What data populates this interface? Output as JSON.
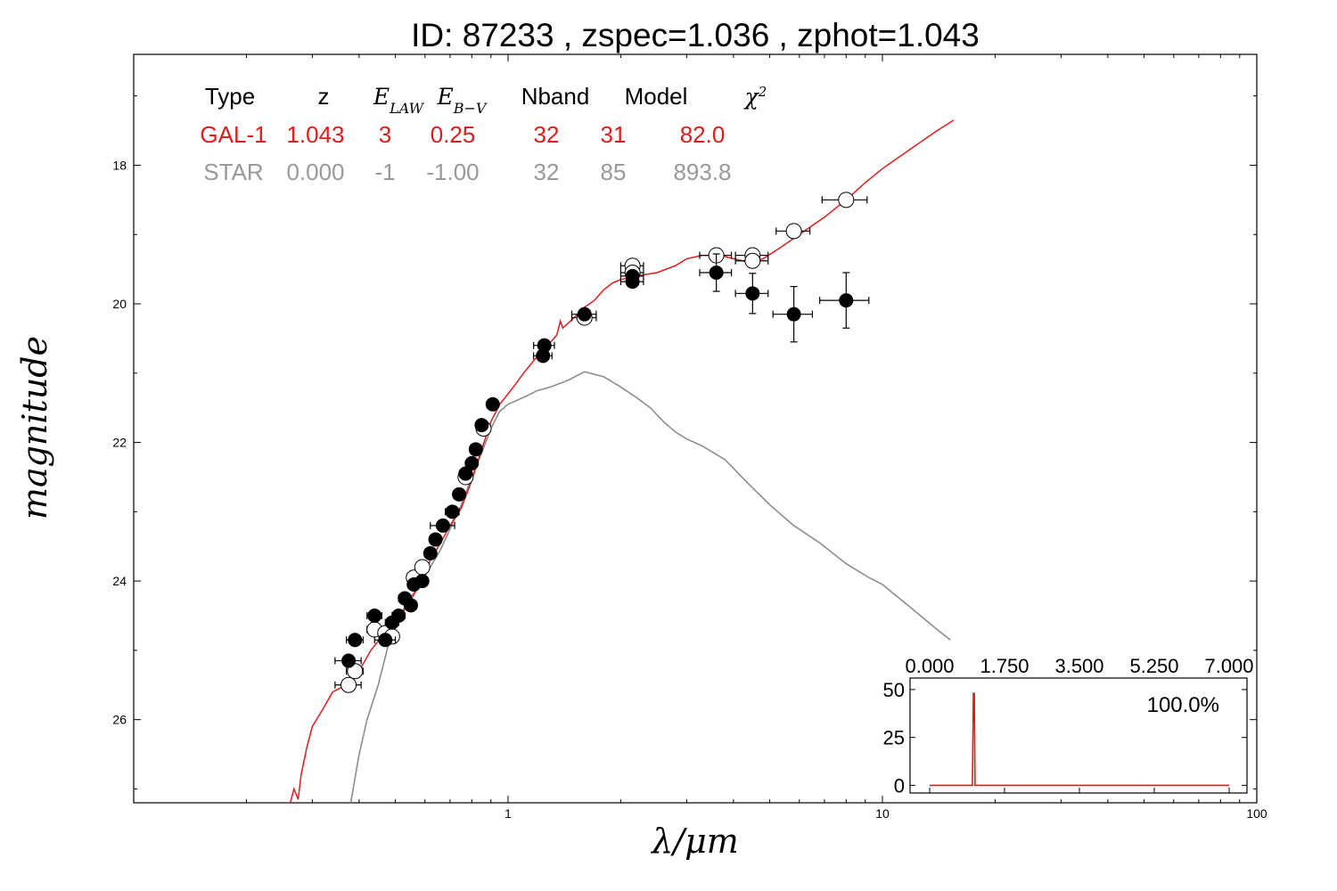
{
  "chart_data": {
    "type": "scatter",
    "title": "ID:  87233 , zspec=1.036 , zphot=1.043",
    "xlabel": "λ/μm",
    "ylabel": "magnitude",
    "x_scale": "log",
    "xlim": [
      0.1,
      100
    ],
    "ylim": [
      27.2,
      16.4
    ],
    "y_inverted": true,
    "x_tick_labels": [
      "1",
      "10",
      "100"
    ],
    "y_tick_labels": [
      "18",
      "20",
      "22",
      "24",
      "26"
    ],
    "fit_table": {
      "headers": [
        "Type",
        "z",
        "E_LAW",
        "E_B−V",
        "Nband",
        "Model",
        "χ²"
      ],
      "rows": [
        {
          "cells": [
            "GAL-1",
            "1.043",
            "3",
            "0.25",
            "32",
            "31",
            "82.0"
          ],
          "color": "#e31a1c"
        },
        {
          "cells": [
            "STAR",
            "0.000",
            "-1",
            "-1.00",
            "32",
            "85",
            "893.8"
          ],
          "color": "#999999"
        }
      ]
    },
    "series": [
      {
        "name": "GAL-1",
        "kind": "line",
        "color": "#e31a1c",
        "points": [
          [
            0.262,
            27.2
          ],
          [
            0.268,
            27.0
          ],
          [
            0.275,
            27.15
          ],
          [
            0.28,
            26.8
          ],
          [
            0.29,
            26.4
          ],
          [
            0.3,
            26.1
          ],
          [
            0.32,
            25.85
          ],
          [
            0.34,
            25.6
          ],
          [
            0.37,
            25.5
          ],
          [
            0.4,
            25.3
          ],
          [
            0.43,
            25.0
          ],
          [
            0.46,
            24.8
          ],
          [
            0.5,
            24.6
          ],
          [
            0.54,
            24.35
          ],
          [
            0.58,
            24.05
          ],
          [
            0.62,
            23.7
          ],
          [
            0.66,
            23.45
          ],
          [
            0.7,
            23.2
          ],
          [
            0.75,
            22.95
          ],
          [
            0.8,
            22.55
          ],
          [
            0.85,
            22.1
          ],
          [
            0.9,
            21.7
          ],
          [
            0.95,
            21.45
          ],
          [
            1.0,
            21.3
          ],
          [
            1.05,
            21.15
          ],
          [
            1.1,
            21.0
          ],
          [
            1.2,
            20.75
          ],
          [
            1.3,
            20.55
          ],
          [
            1.35,
            20.45
          ],
          [
            1.38,
            20.25
          ],
          [
            1.4,
            20.35
          ],
          [
            1.5,
            20.2
          ],
          [
            1.6,
            20.05
          ],
          [
            1.7,
            19.95
          ],
          [
            1.8,
            19.8
          ],
          [
            1.9,
            19.7
          ],
          [
            2.0,
            19.65
          ],
          [
            2.2,
            19.6
          ],
          [
            2.5,
            19.55
          ],
          [
            2.8,
            19.45
          ],
          [
            3.0,
            19.35
          ],
          [
            3.3,
            19.3
          ],
          [
            3.7,
            19.3
          ],
          [
            4.0,
            19.35
          ],
          [
            4.4,
            19.4
          ],
          [
            4.8,
            19.35
          ],
          [
            5.3,
            19.2
          ],
          [
            6.0,
            19.0
          ],
          [
            7.0,
            18.75
          ],
          [
            8.0,
            18.5
          ],
          [
            9.0,
            18.25
          ],
          [
            10.0,
            18.05
          ],
          [
            12.0,
            17.75
          ],
          [
            14.0,
            17.5
          ],
          [
            15.5,
            17.35
          ]
        ]
      },
      {
        "name": "STAR",
        "kind": "line",
        "color": "#8c8c8c",
        "points": [
          [
            0.38,
            27.2
          ],
          [
            0.4,
            26.5
          ],
          [
            0.42,
            26.0
          ],
          [
            0.45,
            25.5
          ],
          [
            0.48,
            24.9
          ],
          [
            0.5,
            24.6
          ],
          [
            0.54,
            24.3
          ],
          [
            0.58,
            24.05
          ],
          [
            0.62,
            23.8
          ],
          [
            0.66,
            23.55
          ],
          [
            0.7,
            23.25
          ],
          [
            0.75,
            22.9
          ],
          [
            0.8,
            22.5
          ],
          [
            0.85,
            22.15
          ],
          [
            0.9,
            21.8
          ],
          [
            0.95,
            21.55
          ],
          [
            1.0,
            21.45
          ],
          [
            1.1,
            21.35
          ],
          [
            1.2,
            21.25
          ],
          [
            1.3,
            21.2
          ],
          [
            1.45,
            21.1
          ],
          [
            1.6,
            20.98
          ],
          [
            1.8,
            21.05
          ],
          [
            2.0,
            21.2
          ],
          [
            2.2,
            21.35
          ],
          [
            2.4,
            21.5
          ],
          [
            2.6,
            21.7
          ],
          [
            2.8,
            21.85
          ],
          [
            3.0,
            21.95
          ],
          [
            3.3,
            22.05
          ],
          [
            3.8,
            22.25
          ],
          [
            4.3,
            22.55
          ],
          [
            5.0,
            22.9
          ],
          [
            5.8,
            23.2
          ],
          [
            6.8,
            23.45
          ],
          [
            8.0,
            23.75
          ],
          [
            9.2,
            23.95
          ],
          [
            10.0,
            24.05
          ],
          [
            12.0,
            24.4
          ],
          [
            14.0,
            24.7
          ],
          [
            15.2,
            24.85
          ]
        ]
      }
    ],
    "photometry": {
      "observed": [
        {
          "x": 0.375,
          "y": 25.15,
          "xerr": 0.03,
          "yerr": 0.06
        },
        {
          "x": 0.39,
          "y": 24.85,
          "xerr": 0.02,
          "yerr": 0.06
        },
        {
          "x": 0.44,
          "y": 24.5,
          "xerr": 0.02,
          "yerr": 0.06
        },
        {
          "x": 0.47,
          "y": 24.85,
          "xerr": 0.03,
          "yerr": 0.06
        },
        {
          "x": 0.49,
          "y": 24.6,
          "xerr": 0.02,
          "yerr": 0.06
        },
        {
          "x": 0.51,
          "y": 24.5,
          "xerr": 0.02,
          "yerr": 0.06
        },
        {
          "x": 0.53,
          "y": 24.25,
          "xerr": 0.02,
          "yerr": 0.05
        },
        {
          "x": 0.55,
          "y": 24.35,
          "xerr": 0.02,
          "yerr": 0.05
        },
        {
          "x": 0.56,
          "y": 24.05,
          "xerr": 0.02,
          "yerr": 0.05
        },
        {
          "x": 0.59,
          "y": 24.0,
          "xerr": 0.02,
          "yerr": 0.05
        },
        {
          "x": 0.62,
          "y": 23.6,
          "xerr": 0.02,
          "yerr": 0.05
        },
        {
          "x": 0.64,
          "y": 23.4,
          "xerr": 0.02,
          "yerr": 0.05
        },
        {
          "x": 0.67,
          "y": 23.2,
          "xerr": 0.05,
          "yerr": 0.04
        },
        {
          "x": 0.71,
          "y": 23.0,
          "xerr": 0.03,
          "yerr": 0.04
        },
        {
          "x": 0.74,
          "y": 22.75,
          "xerr": 0.02,
          "yerr": 0.04
        },
        {
          "x": 0.77,
          "y": 22.45,
          "xerr": 0.02,
          "yerr": 0.04
        },
        {
          "x": 0.8,
          "y": 22.3,
          "xerr": 0.02,
          "yerr": 0.04
        },
        {
          "x": 0.82,
          "y": 22.1,
          "xerr": 0.02,
          "yerr": 0.04
        },
        {
          "x": 0.85,
          "y": 21.75,
          "xerr": 0.03,
          "yerr": 0.04
        },
        {
          "x": 0.91,
          "y": 21.45,
          "xerr": 0.03,
          "yerr": 0.04
        },
        {
          "x": 1.25,
          "y": 20.6,
          "xerr": 0.08,
          "yerr": 0.05
        },
        {
          "x": 1.24,
          "y": 20.75,
          "xerr": 0.07,
          "yerr": 0.05
        },
        {
          "x": 1.6,
          "y": 20.15,
          "xerr": 0.12,
          "yerr": 0.03
        },
        {
          "x": 2.15,
          "y": 19.6,
          "xerr": 0.15,
          "yerr": 0.05
        },
        {
          "x": 2.15,
          "y": 19.68,
          "xerr": 0.15,
          "yerr": 0.05
        },
        {
          "x": 3.6,
          "y": 19.55,
          "xerr": 0.35,
          "yerr": 0.27
        },
        {
          "x": 4.5,
          "y": 19.85,
          "xerr": 0.45,
          "yerr": 0.29
        },
        {
          "x": 5.8,
          "y": 20.15,
          "xerr": 0.7,
          "yerr": 0.4
        },
        {
          "x": 8.0,
          "y": 19.95,
          "xerr": 1.2,
          "yerr": 0.4
        }
      ],
      "model": [
        {
          "x": 0.375,
          "y": 25.5,
          "xerr": 0.03
        },
        {
          "x": 0.39,
          "y": 25.3,
          "xerr": 0.02
        },
        {
          "x": 0.44,
          "y": 24.7,
          "xerr": 0.02
        },
        {
          "x": 0.47,
          "y": 24.75,
          "xerr": 0.02
        },
        {
          "x": 0.49,
          "y": 24.8,
          "xerr": 0.02
        },
        {
          "x": 0.56,
          "y": 23.95,
          "xerr": 0.02
        },
        {
          "x": 0.59,
          "y": 23.8,
          "xerr": 0.02
        },
        {
          "x": 0.77,
          "y": 22.5,
          "xerr": 0.02
        },
        {
          "x": 0.86,
          "y": 21.8,
          "xerr": 0.02
        },
        {
          "x": 1.6,
          "y": 20.2,
          "xerr": 0.12
        },
        {
          "x": 2.15,
          "y": 19.45,
          "xerr": 0.15
        },
        {
          "x": 2.15,
          "y": 19.55,
          "xerr": 0.15
        },
        {
          "x": 3.6,
          "y": 19.3,
          "xerr": 0.35
        },
        {
          "x": 4.5,
          "y": 19.3,
          "xerr": 0.45
        },
        {
          "x": 4.5,
          "y": 19.38,
          "xerr": 0.45
        },
        {
          "x": 5.8,
          "y": 18.95,
          "xerr": 0.6
        },
        {
          "x": 8.0,
          "y": 18.5,
          "xerr": 1.1
        }
      ]
    },
    "inset": {
      "type": "line",
      "x_tick_labels": [
        "0.000",
        "1.750",
        "3.500",
        "5.250",
        "7.000"
      ],
      "y_tick_labels": [
        "50",
        "25",
        "0"
      ],
      "xlim": [
        0,
        7
      ],
      "ylim": [
        -4,
        56
      ],
      "label": "100.0%",
      "color": "#e31a1c",
      "points": [
        [
          0.0,
          0
        ],
        [
          1.0,
          0
        ],
        [
          1.02,
          48
        ],
        [
          1.043,
          48
        ],
        [
          1.06,
          0
        ],
        [
          7.0,
          0
        ]
      ]
    }
  }
}
